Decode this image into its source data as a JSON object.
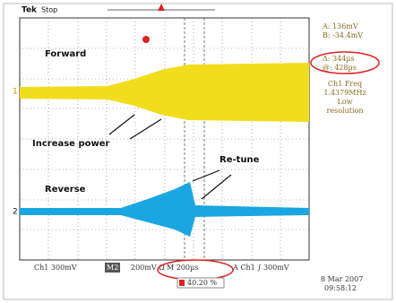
{
  "header": {
    "brand": "Tek",
    "status": "Stop"
  },
  "markers": {
    "ch1": "1",
    "ch2": "2"
  },
  "annotations": {
    "forward": "Forward",
    "increase": "Increase power",
    "retune": "Re-tune",
    "reverse": "Reverse"
  },
  "readout": {
    "cursor_a": "A:  136mV",
    "cursor_b": "B: -34.4mV",
    "delta_t": "Δ:  344µs",
    "cursor_t": "@:  428µs",
    "freq_label": "Ch1 Freq",
    "freq_value": "1.4379MHz",
    "note_1": "Low",
    "note_2": "resolution"
  },
  "status_bar": {
    "ch1": "Ch1  300mV",
    "m2": "M2",
    "m2_scale": "200mV Ω",
    "timebase": "M 200µs",
    "trigger": "A  Ch1 ∫  300mV",
    "position": "40.20 %"
  },
  "timestamp": {
    "date": "8 Mar 2007",
    "time": "09:58:12"
  }
}
